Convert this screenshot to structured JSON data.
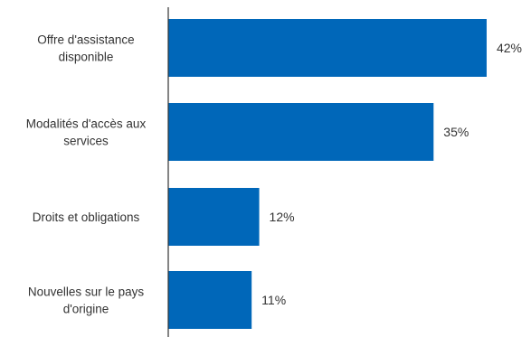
{
  "chart_data": {
    "type": "bar",
    "orientation": "horizontal",
    "categories": [
      [
        "Offre d'assistance",
        "disponible"
      ],
      [
        "Modalités d'accès aux",
        "services"
      ],
      [
        "Droits et obligations"
      ],
      [
        "Nouvelles sur le pays",
        "d'origine"
      ]
    ],
    "values": [
      42,
      35,
      12,
      11
    ],
    "value_labels": [
      "42%",
      "35%",
      "12%",
      "11%"
    ],
    "xlim": [
      0,
      50
    ],
    "grid": false,
    "legend": "none",
    "colors": {
      "bar": "#0067B9",
      "axis": "#333333",
      "text": "#333333"
    }
  }
}
